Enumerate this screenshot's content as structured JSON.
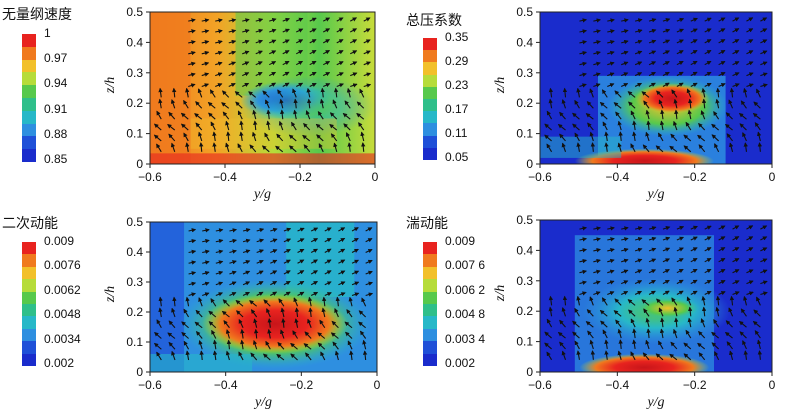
{
  "chart_data": [
    {
      "type": "heatmap",
      "panel": "top-left",
      "legend_title": "无量纲速度",
      "colorbar_labels": [
        "1",
        "0.97",
        "0.94",
        "0.91",
        "0.88",
        "0.85"
      ],
      "xlabel": "y/g",
      "ylabel": "z/h",
      "xticks": [
        "−0.6",
        "−0.4",
        "−0.2",
        "0"
      ],
      "yticks": [
        "0",
        "0.1",
        "0.2",
        "0.3",
        "0.4",
        "0.5"
      ],
      "xlim": [
        -0.6,
        0
      ],
      "ylim": [
        0,
        0.5
      ],
      "legend_position": "left"
    },
    {
      "type": "heatmap",
      "panel": "top-right",
      "legend_title": "总压系数",
      "colorbar_labels": [
        "0.35",
        "0.29",
        "0.23",
        "0.17",
        "0.11",
        "0.05"
      ],
      "xlabel": "y/g",
      "ylabel": "z/h",
      "xticks": [
        "−0.6",
        "−0.4",
        "−0.2",
        "0"
      ],
      "yticks": [
        "0",
        "0.1",
        "0.2",
        "0.3",
        "0.4",
        "0.5"
      ],
      "xlim": [
        -0.6,
        0
      ],
      "ylim": [
        0,
        0.5
      ],
      "legend_position": "left"
    },
    {
      "type": "heatmap",
      "panel": "bottom-left",
      "legend_title": "二次动能",
      "colorbar_labels": [
        "0.009",
        "0.0076",
        "0.0062",
        "0.0048",
        "0.0034",
        "0.002"
      ],
      "xlabel": "y/g",
      "ylabel": "z/h",
      "xticks": [
        "−0.6",
        "−0.4",
        "−0.2",
        "0"
      ],
      "yticks": [
        "0",
        "0.1",
        "0.2",
        "0.3",
        "0.4",
        "0.5"
      ],
      "xlim": [
        -0.6,
        0
      ],
      "ylim": [
        0,
        0.5
      ],
      "legend_position": "left"
    },
    {
      "type": "heatmap",
      "panel": "bottom-right",
      "legend_title": "湍动能",
      "colorbar_labels": [
        "0.009",
        "0.007 6",
        "0.006 2",
        "0.004 8",
        "0.003 4",
        "0.002"
      ],
      "xlabel": "y/g",
      "ylabel": "z/h",
      "xticks": [
        "−0.6",
        "−0.4",
        "−0.2",
        "0"
      ],
      "yticks": [
        "0",
        "0.1",
        "0.2",
        "0.3",
        "0.4",
        "0.5"
      ],
      "xlim": [
        -0.6,
        0
      ],
      "ylim": [
        0,
        0.5
      ],
      "legend_position": "left"
    }
  ],
  "colormap": [
    "#e8231f",
    "#f07a1e",
    "#f2c02a",
    "#b6dc3a",
    "#57c94c",
    "#2fbf8a",
    "#27b8c8",
    "#2e8fe0",
    "#1f50d8",
    "#1a2ccc"
  ]
}
